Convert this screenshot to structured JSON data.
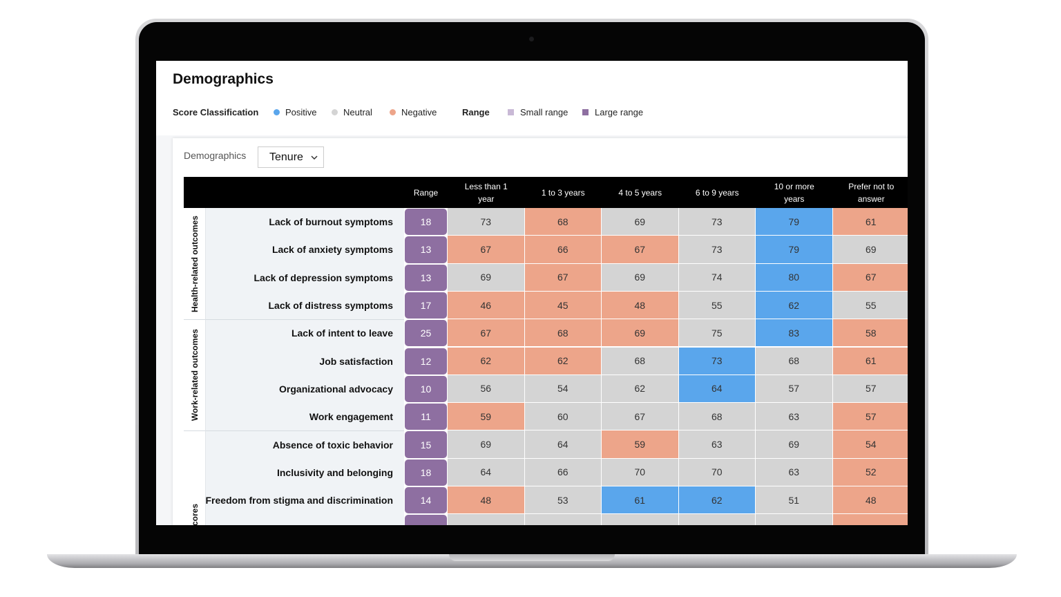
{
  "header": {
    "title": "Demographics"
  },
  "legend": {
    "classification": {
      "title": "Score Classification",
      "items": [
        {
          "label": "Positive",
          "color": "#5aa6ec"
        },
        {
          "label": "Neutral",
          "color": "#d4d4d4"
        },
        {
          "label": "Negative",
          "color": "#eda58a"
        }
      ]
    },
    "range": {
      "title": "Range",
      "items": [
        {
          "label": "Small range",
          "color": "#c9b9d6"
        },
        {
          "label": "Large range",
          "color": "#8e6fa1"
        }
      ]
    }
  },
  "filter": {
    "label": "Demographics",
    "selected": "Tenure"
  },
  "table": {
    "columns": [
      "Range",
      "Less than 1 year",
      "1 to 3 years",
      "4 to 5 years",
      "6 to 9 years",
      "10 or more years",
      "Prefer not to answer"
    ],
    "groups": [
      {
        "label": "Health-related outcomes",
        "rows": [
          {
            "label": "Lack of burnout symptoms",
            "range": 18,
            "range_class": "Large range",
            "values": [
              73,
              68,
              69,
              73,
              79,
              61
            ],
            "classes": [
              "Neutral",
              "Negative",
              "Neutral",
              "Neutral",
              "Positive",
              "Negative"
            ]
          },
          {
            "label": "Lack of anxiety symptoms",
            "range": 13,
            "range_class": "Large range",
            "values": [
              67,
              66,
              67,
              73,
              79,
              69
            ],
            "classes": [
              "Negative",
              "Negative",
              "Negative",
              "Neutral",
              "Positive",
              "Neutral"
            ]
          },
          {
            "label": "Lack of depression symptoms",
            "range": 13,
            "range_class": "Large range",
            "values": [
              69,
              67,
              69,
              74,
              80,
              67
            ],
            "classes": [
              "Neutral",
              "Negative",
              "Neutral",
              "Neutral",
              "Positive",
              "Negative"
            ]
          },
          {
            "label": "Lack of distress symptoms",
            "range": 17,
            "range_class": "Large range",
            "values": [
              46,
              45,
              48,
              55,
              62,
              55
            ],
            "classes": [
              "Negative",
              "Negative",
              "Negative",
              "Neutral",
              "Positive",
              "Neutral"
            ]
          }
        ]
      },
      {
        "label": "Work-related outcomes",
        "rows": [
          {
            "label": "Lack of intent to leave",
            "range": 25,
            "range_class": "Large range",
            "values": [
              67,
              68,
              69,
              75,
              83,
              58
            ],
            "classes": [
              "Negative",
              "Negative",
              "Negative",
              "Neutral",
              "Positive",
              "Negative"
            ]
          },
          {
            "label": "Job satisfaction",
            "range": 12,
            "range_class": "Large range",
            "values": [
              62,
              62,
              68,
              73,
              68,
              61
            ],
            "classes": [
              "Negative",
              "Negative",
              "Neutral",
              "Positive",
              "Neutral",
              "Negative"
            ]
          },
          {
            "label": "Organizational advocacy",
            "range": 10,
            "range_class": "Large range",
            "values": [
              56,
              54,
              62,
              64,
              57,
              57
            ],
            "classes": [
              "Neutral",
              "Neutral",
              "Neutral",
              "Positive",
              "Neutral",
              "Neutral"
            ]
          },
          {
            "label": "Work engagement",
            "range": 11,
            "range_class": "Large range",
            "values": [
              59,
              60,
              67,
              68,
              63,
              57
            ],
            "classes": [
              "Negative",
              "Neutral",
              "Neutral",
              "Neutral",
              "Neutral",
              "Negative"
            ]
          }
        ]
      },
      {
        "label": "r scores",
        "rows": [
          {
            "label": "Absence of toxic behavior",
            "range": 15,
            "range_class": "Large range",
            "values": [
              69,
              64,
              59,
              63,
              69,
              54
            ],
            "classes": [
              "Neutral",
              "Neutral",
              "Negative",
              "Neutral",
              "Neutral",
              "Negative"
            ]
          },
          {
            "label": "Inclusivity and belonging",
            "range": 18,
            "range_class": "Large range",
            "values": [
              64,
              66,
              70,
              70,
              63,
              52
            ],
            "classes": [
              "Neutral",
              "Neutral",
              "Neutral",
              "Neutral",
              "Neutral",
              "Negative"
            ]
          },
          {
            "label": "Freedom from stigma and discrimination",
            "range": 14,
            "range_class": "Large range",
            "values": [
              48,
              53,
              61,
              62,
              51,
              48
            ],
            "classes": [
              "Negative",
              "Neutral",
              "Positive",
              "Positive",
              "Neutral",
              "Negative"
            ]
          }
        ]
      }
    ]
  }
}
